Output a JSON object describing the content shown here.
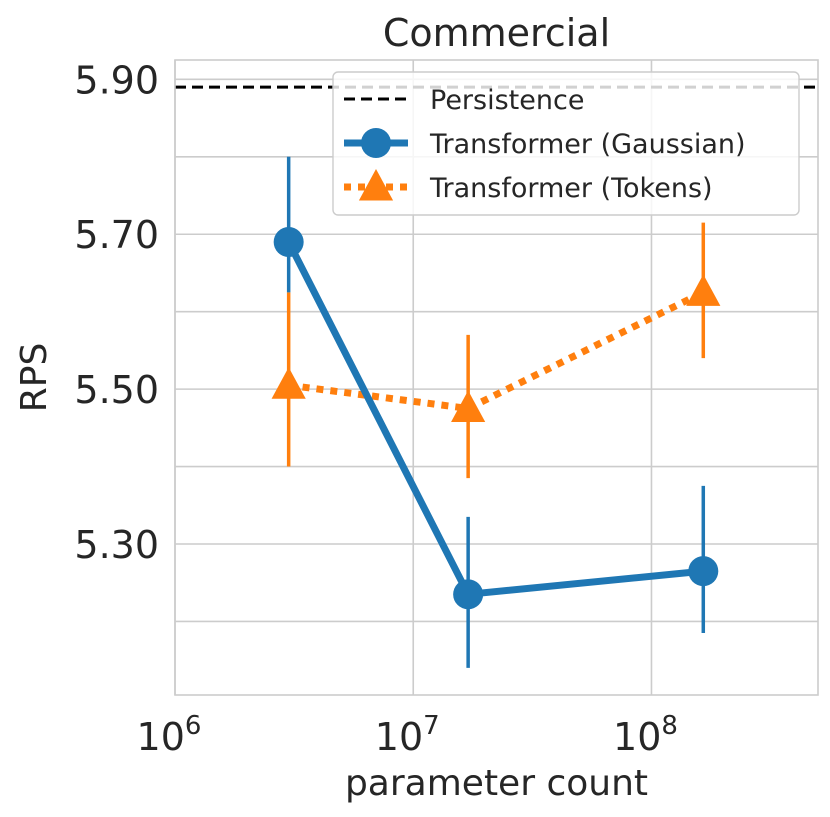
{
  "chart_data": {
    "type": "line",
    "title": "Commercial",
    "xlabel": "parameter count",
    "ylabel": "RPS",
    "xscale": "log",
    "xlim": [
      1000000,
      500000000
    ],
    "ylim": [
      5.105,
      5.925
    ],
    "grid": true,
    "legend_position": "top-right",
    "x_ticks": [
      {
        "value": 1000000,
        "base": "10",
        "exp": "6"
      },
      {
        "value": 10000000,
        "base": "10",
        "exp": "7"
      },
      {
        "value": 100000000,
        "base": "10",
        "exp": "8"
      }
    ],
    "y_ticks": [
      {
        "value": 5.3,
        "label": "5.30"
      },
      {
        "value": 5.5,
        "label": "5.50"
      },
      {
        "value": 5.7,
        "label": "5.70"
      },
      {
        "value": 5.9,
        "label": "5.90"
      }
    ],
    "y_minor_grid": [
      5.2,
      5.4,
      5.6,
      5.8
    ],
    "reference_line": {
      "name": "Persistence",
      "y": 5.89,
      "color": "#000000",
      "style": "dashed"
    },
    "series": [
      {
        "name": "Transformer (Gaussian)",
        "color": "#1f77b4",
        "marker": "circle",
        "line_style": "solid",
        "x": [
          3000000,
          17000000,
          165000000
        ],
        "y": [
          5.69,
          5.235,
          5.265
        ],
        "err_low": [
          5.625,
          5.14,
          5.185
        ],
        "err_high": [
          5.8,
          5.335,
          5.375
        ]
      },
      {
        "name": "Transformer (Tokens)",
        "color": "#ff7f0e",
        "marker": "triangle",
        "line_style": "dotted",
        "x": [
          3000000,
          17000000,
          165000000
        ],
        "y": [
          5.505,
          5.475,
          5.625
        ],
        "err_low": [
          5.4,
          5.385,
          5.54
        ],
        "err_high": [
          5.625,
          5.57,
          5.715
        ]
      }
    ]
  }
}
